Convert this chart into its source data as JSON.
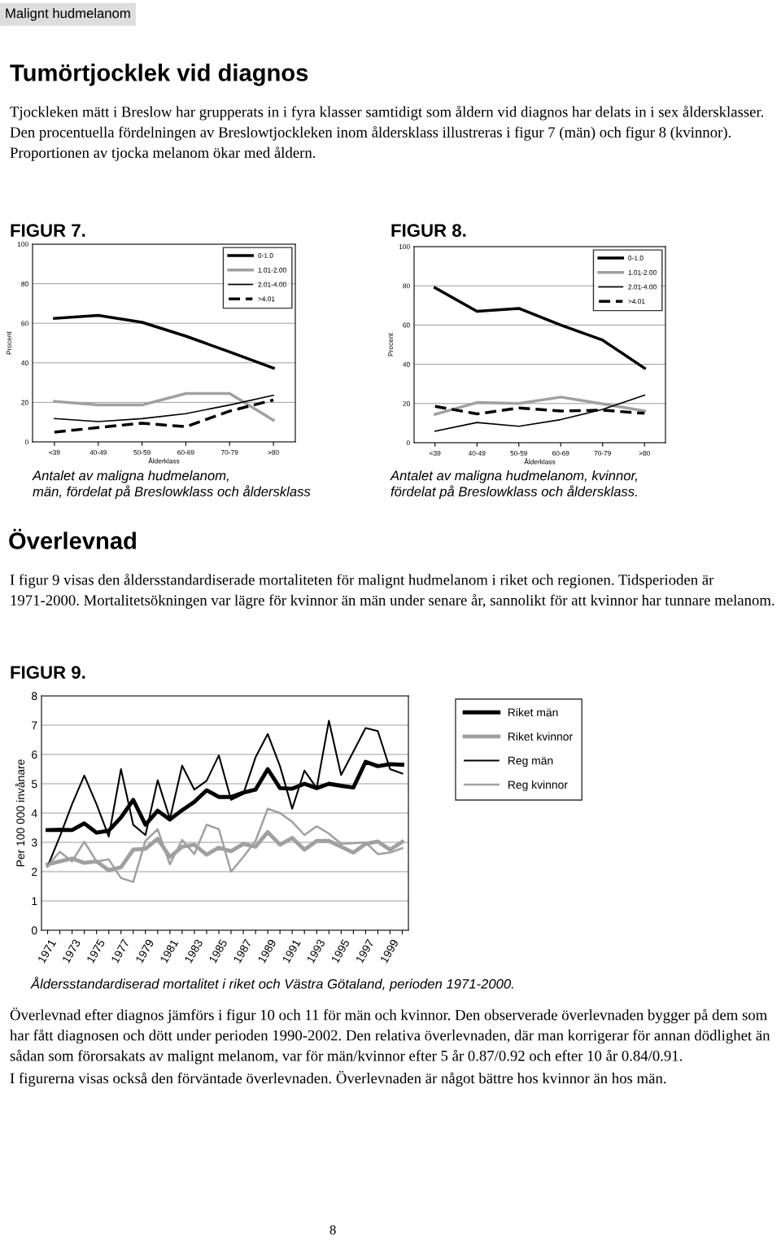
{
  "chart_data": [
    {
      "type": "line",
      "title": "FIGUR 7.",
      "ylabel": "Procent",
      "xlabel": "Ålderklass",
      "categories": [
        "<39",
        "40-49",
        "50-59",
        "60-69",
        "70-79",
        ">80"
      ],
      "series": [
        {
          "name": "0-1.0",
          "color": "#000000",
          "values": [
            62.5,
            64,
            60.5,
            53.5,
            45.5,
            37.3
          ]
        },
        {
          "name": "1.01-2.00",
          "color": "#a0a0a0",
          "values": [
            20.5,
            18.7,
            18.7,
            24.5,
            24.5,
            11
          ]
        },
        {
          "name": "2.01-4.00",
          "color": "#000000",
          "values": [
            11.8,
            10.3,
            11.8,
            14.3,
            18.7,
            23.6
          ]
        },
        {
          "name": ">4.01",
          "color": "#000000",
          "line_style": "dashed",
          "values": [
            4.9,
            7.3,
            9.5,
            7.7,
            15.6,
            21.2
          ]
        }
      ],
      "ylim": [
        0,
        100
      ],
      "yticks": [
        0,
        20,
        40,
        60,
        80,
        100
      ],
      "grid": "y",
      "legend": "top right",
      "annotations": [
        "Malignt hudmelanom",
        "Tumörtjocklek vid diagnos",
        "Tjockleken mätt i Breslow har grupperats in i fyra klasser samtidigt som åldern vid diagnos har delats in i sex åldersklasser. Den procentuella fördelningen av Breslowtjockleken inom åldersklass illustreras i figur 7 (män) och figur 8 (kvinnor). Proportionen av tjocka melanom ökar med åldern.",
        "Antalet av maligna hudmelanom,\nmän, fördelat på Breslowklass och åldersklass"
      ]
    },
    {
      "type": "line",
      "title": "FIGUR 8.",
      "ylabel": "Procent",
      "xlabel": "Ålderklass",
      "categories": [
        "<39",
        "40-49",
        "50-59",
        "60-69",
        "70-79",
        ">80"
      ],
      "series": [
        {
          "name": "0-1.0",
          "color": "#000000",
          "values": [
            79,
            67,
            68.5,
            60,
            52.3,
            38
          ]
        },
        {
          "name": "1.01-2.00",
          "color": "#a0a0a0",
          "values": [
            14.5,
            20.5,
            20,
            23.3,
            19.8,
            16.2
          ]
        },
        {
          "name": "2.01-4.00",
          "color": "#000000",
          "values": [
            5.9,
            10.3,
            8.4,
            11.8,
            17,
            24.3
          ]
        },
        {
          "name": ">4.01",
          "color": "#000000",
          "line_style": "dashed",
          "values": [
            18.6,
            14.7,
            17.7,
            16.2,
            16.6,
            15
          ]
        }
      ],
      "ylim": [
        0,
        100
      ],
      "yticks": [
        0,
        20,
        40,
        60,
        80,
        100
      ],
      "grid": "y",
      "legend": "top right",
      "annotations": [
        "Antalet av maligna hudmelanom, kvinnor,\nfördelat på Breslowklass och åldersklass.",
        "Överlevnad",
        "I figur 9 visas den åldersstandardiserade mortaliteten för malignt hudmelanom i riket och regionen. Tidsperioden är 1971-2000. Mortalitetsökningen var lägre för kvinnor än män under senare år, sannolikt för att kvinnor har tunnare melanom."
      ]
    },
    {
      "type": "line",
      "title": "FIGUR 9.",
      "ylabel": "Per 100 000 invånare",
      "categories": [
        "1971",
        null,
        "1973",
        null,
        "1975",
        null,
        "1977",
        null,
        "1979",
        null,
        "1981",
        null,
        "1983",
        null,
        "1985",
        null,
        "1987",
        null,
        "1989",
        null,
        "1991",
        null,
        "1993",
        null,
        "1995",
        null,
        "1997",
        null,
        "1999",
        null
      ],
      "series": [
        {
          "name": "Riket män",
          "color": "#000000",
          "values": [
            3.42,
            3.43,
            3.42,
            3.65,
            3.33,
            3.4,
            3.85,
            4.45,
            3.6,
            4.08,
            3.78,
            4.1,
            4.38,
            4.78,
            4.55,
            4.55,
            4.7,
            4.8,
            5.5,
            4.85,
            4.83,
            5.0,
            4.85,
            5.0,
            4.93,
            4.87,
            5.75,
            5.6,
            5.67,
            5.65
          ]
        },
        {
          "name": "Riket kvinnor",
          "color": "#a0a0a0",
          "values": [
            2.25,
            2.35,
            2.45,
            2.3,
            2.35,
            2.05,
            2.15,
            2.75,
            2.78,
            3.12,
            2.5,
            2.85,
            2.92,
            2.58,
            2.82,
            2.7,
            2.95,
            2.85,
            3.35,
            2.92,
            3.15,
            2.75,
            3.05,
            3.05,
            2.85,
            2.65,
            2.95,
            3.03,
            2.75,
            3.02
          ]
        },
        {
          "name": "Reg män",
          "color": "#000000",
          "values": [
            2.18,
            3.2,
            4.3,
            5.28,
            4.3,
            3.2,
            5.5,
            3.6,
            3.25,
            5.12,
            3.8,
            5.62,
            4.8,
            5.1,
            5.97,
            4.45,
            4.65,
            5.9,
            6.7,
            5.6,
            4.15,
            5.45,
            4.85,
            7.15,
            5.3,
            6.1,
            6.9,
            6.8,
            5.5,
            5.35
          ]
        },
        {
          "name": "Reg kvinnor",
          "color": "#a0a0a0",
          "values": [
            2.2,
            2.68,
            2.35,
            3.02,
            2.35,
            2.42,
            1.78,
            1.65,
            3.05,
            3.45,
            2.25,
            3.08,
            2.6,
            3.6,
            3.45,
            2.0,
            2.5,
            3.05,
            4.15,
            4.0,
            3.7,
            3.25,
            3.55,
            3.3,
            2.95,
            2.97,
            3.0,
            2.6,
            2.65,
            2.8
          ]
        }
      ],
      "ylim": [
        0,
        8
      ],
      "yticks": [
        0,
        1,
        2,
        3,
        4,
        5,
        6,
        7,
        8
      ],
      "grid": "y",
      "legend": "right",
      "annotations": [
        "Åldersstandardiserad mortalitet i riket och Västra Götaland, perioden 1971-2000.",
        "Överlevnad efter diagnos jämförs i figur 10 och 11 för män och kvinnor. Den observerade överlevnaden bygger på dem som har fått diagnosen och dött under perioden 1990-2002. Den relativa överlevnaden, där man korrigerar för annan dödlighet än sådan som förorsakats av malignt melanom, var för män/kvinnor efter 5 år 0.87/0.92 och efter 10 år 0.84/0.91.\nI figurerna visas också den förväntade överlevnaden. Överlevnaden är något bättre hos kvinnor än hos män.",
        "8"
      ]
    }
  ]
}
